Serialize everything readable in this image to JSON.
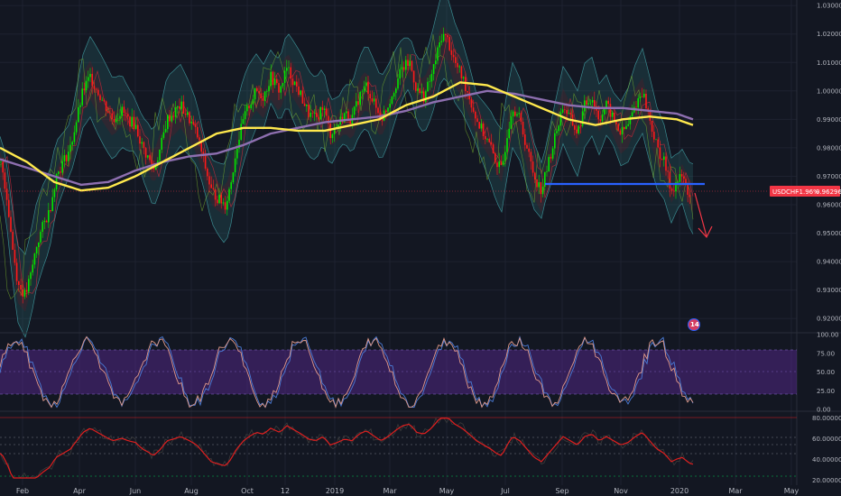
{
  "symbol_tag": {
    "symbol": "USDCHF",
    "change": "-1.96%",
    "price": "0.96296",
    "color": "#f23645"
  },
  "badge": {
    "text": "14"
  },
  "colors": {
    "background": "#131722",
    "grid": "#1e2230",
    "sma_yellow": "#ffe94d",
    "sma_purple": "#8e6fb0",
    "bollinger": "#2a6a70",
    "support": "#2962ff",
    "arrow": "#f23645",
    "rsi_band": "#5e2a98",
    "stoch_line1": "#e09a8a",
    "stoch_line2": "#4a7bd6",
    "osc_line": "#e01e1e",
    "up": "#00e600",
    "down": "#ff1a1a"
  },
  "chart_data": [
    {
      "type": "line",
      "panel": "price",
      "y_ticks": [
        "1.03000",
        "1.02000",
        "1.01000",
        "1.00000",
        "0.99000",
        "0.98000",
        "0.97000",
        "0.96000",
        "0.95000",
        "0.94000",
        "0.93000",
        "0.92000"
      ],
      "ylim": [
        0.915,
        1.031
      ],
      "x_ticks": [
        "Feb",
        "Apr",
        "Jun",
        "Aug",
        "Oct",
        "12",
        "2019",
        "Mar",
        "May",
        "Jul",
        "Sep",
        "Nov",
        "2020",
        "Mar",
        "May"
      ],
      "last_price": 0.96296,
      "support_level": 0.965,
      "series": [
        {
          "role": "price_path",
          "x": [
            0,
            3,
            8,
            14,
            20,
            28,
            34,
            40,
            47,
            55,
            62,
            70,
            78,
            85,
            92,
            100,
            108,
            118,
            125,
            135,
            142,
            150,
            158,
            165,
            170,
            178,
            185,
            192,
            200,
            210,
            218,
            226,
            234,
            242,
            250,
            256,
            262,
            270,
            276,
            284,
            292,
            300,
            310,
            318,
            326,
            334,
            342,
            350,
            358,
            366,
            374,
            382,
            390,
            398,
            406,
            414,
            422,
            430,
            438,
            446,
            454,
            462,
            470,
            478,
            486,
            490,
            496,
            504,
            512,
            520,
            528,
            536,
            544,
            550,
            556,
            562,
            568,
            576,
            584,
            592,
            600,
            608,
            616,
            624,
            632,
            640,
            648,
            656,
            664,
            672,
            680,
            688,
            696,
            704,
            712,
            720,
            728,
            736,
            744,
            750,
            756,
            762,
            766
          ],
          "y": [
            0.975,
            0.972,
            0.962,
            0.945,
            0.932,
            0.928,
            0.935,
            0.945,
            0.952,
            0.958,
            0.97,
            0.975,
            0.98,
            0.99,
            1.0,
            1.005,
            1.0,
            0.994,
            0.99,
            0.993,
            0.99,
            0.988,
            0.98,
            0.976,
            0.972,
            0.98,
            0.99,
            0.992,
            0.995,
            0.99,
            0.985,
            0.975,
            0.965,
            0.962,
            0.96,
            0.968,
            0.98,
            0.99,
            0.995,
            1.0,
            0.998,
            1.005,
            1.0,
            1.008,
            1.003,
            0.998,
            0.992,
            0.99,
            0.995,
            0.985,
            0.988,
            0.992,
            0.99,
            0.998,
            1.002,
            0.996,
            0.99,
            0.995,
            1.002,
            1.008,
            1.01,
            1.0,
            0.998,
            1.005,
            1.015,
            1.02,
            1.018,
            1.01,
            1.005,
            0.998,
            0.99,
            0.985,
            0.98,
            0.975,
            0.972,
            0.985,
            0.995,
            0.99,
            0.98,
            0.97,
            0.965,
            0.975,
            0.985,
            0.995,
            0.99,
            0.985,
            0.995,
            0.998,
            0.99,
            0.995,
            0.99,
            0.985,
            0.988,
            0.995,
            1.0,
            0.99,
            0.98,
            0.975,
            0.965,
            0.968,
            0.97,
            0.965,
            0.962
          ]
        },
        {
          "role": "sma_yellow",
          "x": [
            0,
            30,
            60,
            90,
            120,
            150,
            180,
            210,
            240,
            270,
            300,
            330,
            360,
            390,
            420,
            450,
            480,
            510,
            540,
            570,
            600,
            630,
            660,
            690,
            720,
            750,
            768
          ],
          "y": [
            0.98,
            0.975,
            0.968,
            0.965,
            0.966,
            0.97,
            0.975,
            0.98,
            0.985,
            0.987,
            0.987,
            0.986,
            0.986,
            0.988,
            0.99,
            0.995,
            0.998,
            1.003,
            1.002,
            0.998,
            0.994,
            0.99,
            0.988,
            0.99,
            0.991,
            0.99,
            0.988
          ]
        },
        {
          "role": "sma_purple",
          "x": [
            0,
            30,
            60,
            90,
            120,
            150,
            180,
            210,
            240,
            270,
            300,
            330,
            360,
            390,
            420,
            450,
            480,
            510,
            540,
            570,
            600,
            630,
            660,
            690,
            720,
            750,
            768
          ],
          "y": [
            0.976,
            0.973,
            0.97,
            0.967,
            0.968,
            0.972,
            0.975,
            0.977,
            0.978,
            0.981,
            0.985,
            0.987,
            0.989,
            0.99,
            0.991,
            0.993,
            0.996,
            0.998,
            1.0,
            0.999,
            0.997,
            0.995,
            0.994,
            0.994,
            0.993,
            0.992,
            0.99
          ]
        }
      ]
    },
    {
      "type": "line",
      "panel": "stochastic",
      "y_ticks": [
        "100.00",
        "75.00",
        "50.00",
        "25.00",
        "0.00"
      ],
      "ylim": [
        0,
        100
      ],
      "band": [
        20,
        80
      ]
    },
    {
      "type": "line",
      "panel": "oscillator",
      "y_ticks": [
        "80.00000",
        "60.00000",
        "40.00000",
        "20.00000"
      ],
      "ylim": [
        15,
        85
      ]
    }
  ]
}
